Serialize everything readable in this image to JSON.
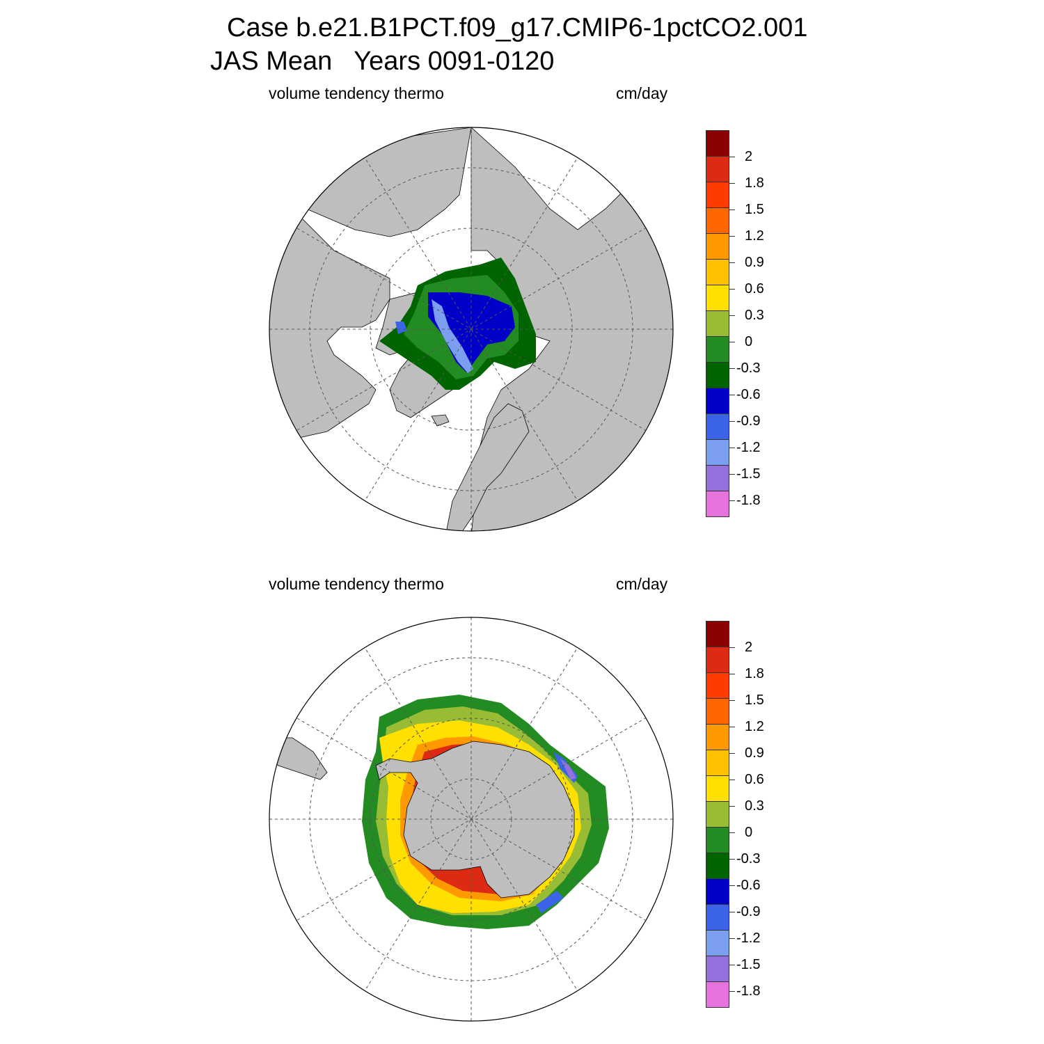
{
  "title": {
    "line1": "Case b.e21.B1PCT.f09_g17.CMIP6-1pctCO2.001",
    "line2": "JAS Mean   Years 0091-0120"
  },
  "panels": [
    {
      "id": "north",
      "left_label": "volume tendency thermo",
      "right_label": "cm/day"
    },
    {
      "id": "south",
      "left_label": "volume tendency thermo",
      "right_label": "cm/day"
    }
  ],
  "colorbar": {
    "tick_labels": [
      "2",
      "1.8",
      "1.5",
      "1.2",
      "0.9",
      "0.6",
      "0.3",
      "0",
      "-0.3",
      "-0.6",
      "-0.9",
      "-1.2",
      "-1.5",
      "-1.8"
    ],
    "colors": [
      "#8b0000",
      "#dd2a12",
      "#ff3b00",
      "#ff6600",
      "#ff9900",
      "#ffc000",
      "#ffe000",
      "#98bd35",
      "#228b22",
      "#006400",
      "#0000c8",
      "#3c64e6",
      "#7b9ef0",
      "#9370db",
      "#e673dc"
    ]
  },
  "colors": {
    "land": "#bebebe",
    "ocean": "#ffffff",
    "graticule": "#555555"
  }
}
